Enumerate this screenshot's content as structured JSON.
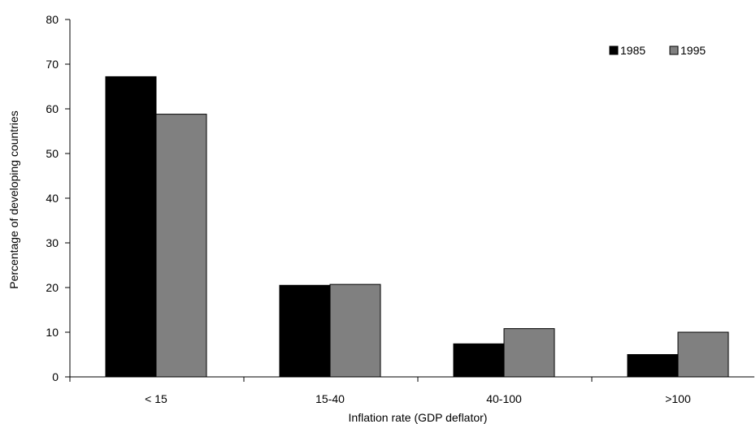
{
  "chart_data": {
    "type": "bar",
    "title": "",
    "xlabel": "Inflation rate (GDP deflator)",
    "ylabel": "Percentage of developing countries",
    "categories": [
      "< 15",
      "15-40",
      "40-100",
      ">100"
    ],
    "series": [
      {
        "name": "1985",
        "values": [
          67.2,
          20.5,
          7.4,
          5.0
        ],
        "color": "#000000"
      },
      {
        "name": "1995",
        "values": [
          58.8,
          20.7,
          10.8,
          10.0
        ],
        "color": "#808080"
      }
    ],
    "ylim": [
      0,
      80
    ],
    "yticks": [
      0,
      10,
      20,
      30,
      40,
      50,
      60,
      70,
      80
    ],
    "grid": false,
    "legend_position": "top-right"
  }
}
